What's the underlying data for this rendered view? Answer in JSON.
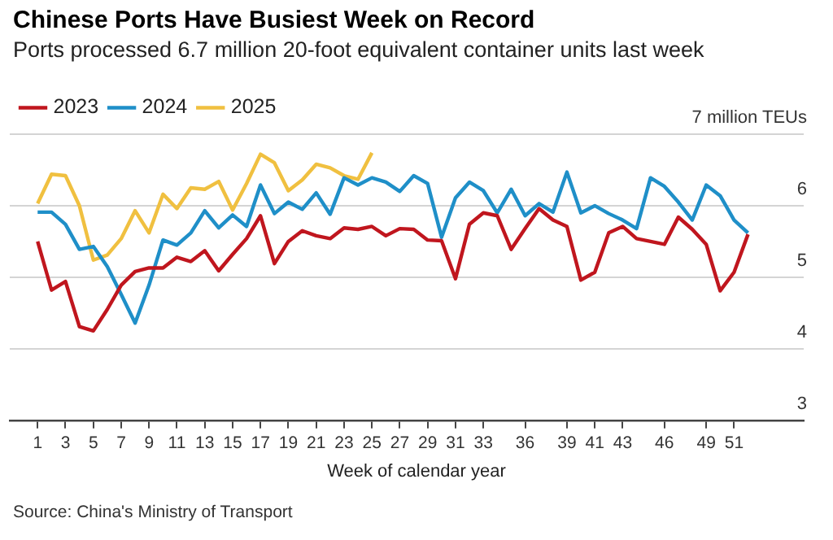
{
  "chart_data": {
    "type": "line",
    "title": "Chinese Ports Have Busiest Week on Record",
    "subtitle": "Ports processed 6.7 million 20-foot equivalent container units last week",
    "xlabel": "Week of calendar year",
    "annotations": [
      "Source: China's Ministry of Transport"
    ],
    "x": [
      1,
      2,
      3,
      4,
      5,
      6,
      7,
      8,
      9,
      10,
      11,
      12,
      13,
      14,
      15,
      16,
      17,
      18,
      19,
      20,
      21,
      22,
      23,
      24,
      25,
      26,
      27,
      28,
      29,
      30,
      31,
      32,
      33,
      34,
      35,
      36,
      37,
      38,
      39,
      40,
      41,
      42,
      43,
      44,
      45,
      46,
      47,
      48,
      49,
      50,
      51,
      52
    ],
    "series": [
      {
        "name": "2023",
        "color": "#c0161e",
        "values": [
          5.5,
          4.82,
          4.94,
          4.31,
          4.25,
          4.55,
          4.89,
          5.08,
          5.13,
          5.13,
          5.28,
          5.22,
          5.37,
          5.09,
          5.32,
          5.54,
          5.86,
          5.19,
          5.5,
          5.65,
          5.58,
          5.54,
          5.69,
          5.67,
          5.71,
          5.58,
          5.68,
          5.67,
          5.52,
          5.51,
          4.98,
          5.74,
          5.9,
          5.86,
          5.39,
          5.68,
          5.96,
          5.8,
          5.71,
          4.96,
          5.07,
          5.62,
          5.71,
          5.54,
          5.5,
          5.46,
          5.84,
          5.67,
          5.46,
          4.81,
          5.07,
          5.6
        ]
      },
      {
        "name": "2024",
        "color": "#1f8fc8",
        "values": [
          5.91,
          5.91,
          5.74,
          5.39,
          5.43,
          5.15,
          4.76,
          4.36,
          4.89,
          5.52,
          5.45,
          5.62,
          5.93,
          5.69,
          5.87,
          5.71,
          6.29,
          5.89,
          6.05,
          5.95,
          6.18,
          5.88,
          6.39,
          6.29,
          6.39,
          6.33,
          6.2,
          6.42,
          6.31,
          5.56,
          6.11,
          6.33,
          6.21,
          5.9,
          6.23,
          5.86,
          6.03,
          5.91,
          6.47,
          5.9,
          6.0,
          5.89,
          5.8,
          5.68,
          6.39,
          6.27,
          6.05,
          5.8,
          6.29,
          6.14,
          5.8,
          5.62
        ]
      },
      {
        "name": "2025",
        "color": "#f0c040",
        "values": [
          6.03,
          6.44,
          6.42,
          6.0,
          5.24,
          5.31,
          5.54,
          5.93,
          5.62,
          6.16,
          5.96,
          6.25,
          6.23,
          6.34,
          5.94,
          6.31,
          6.72,
          6.6,
          6.21,
          6.36,
          6.58,
          6.53,
          6.42,
          6.37,
          6.74,
          null,
          null,
          null,
          null,
          null,
          null,
          null,
          null,
          null,
          null,
          null,
          null,
          null,
          null,
          null,
          null,
          null,
          null,
          null,
          null,
          null,
          null,
          null,
          null,
          null,
          null,
          null
        ]
      }
    ],
    "xlim": [
      -1,
      56
    ],
    "xticks": [
      1,
      3,
      5,
      7,
      9,
      11,
      13,
      15,
      17,
      19,
      21,
      23,
      25,
      27,
      29,
      31,
      33,
      36,
      39,
      41,
      43,
      46,
      49,
      51
    ],
    "ylim": [
      3,
      7
    ],
    "yticks": [
      3,
      4,
      5,
      6,
      {
        "value": 7,
        "label": "7 million TEUs"
      }
    ],
    "grid": "y",
    "legend": "top left",
    "marker": "none",
    "line_style": "solid"
  }
}
